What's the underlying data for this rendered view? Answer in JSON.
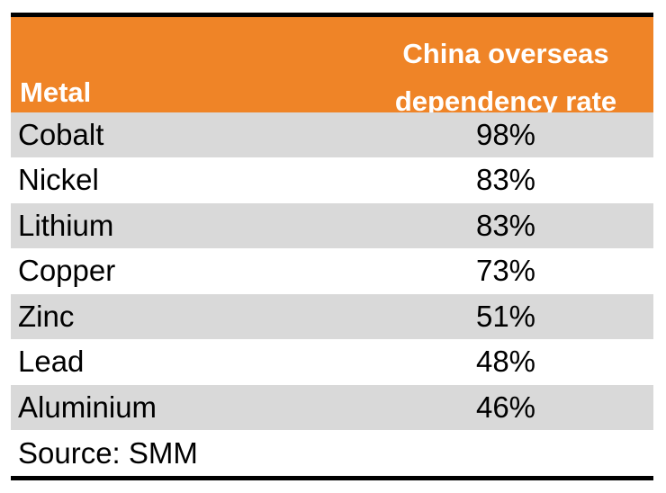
{
  "colors": {
    "header_bg": "#ef8427",
    "header_text": "#ffffff",
    "shaded_row": "#d9d9d9",
    "rule": "#000000"
  },
  "header": {
    "metal": "Metal",
    "rate_line1": "China overseas",
    "rate_line2": "dependency rate"
  },
  "rows": [
    {
      "metal": "Cobalt",
      "value": "98%"
    },
    {
      "metal": "Nickel",
      "value": "83%"
    },
    {
      "metal": "Lithium",
      "value": "83%"
    },
    {
      "metal": "Copper",
      "value": "73%"
    },
    {
      "metal": "Zinc",
      "value": "51%"
    },
    {
      "metal": "Lead",
      "value": "48%"
    },
    {
      "metal": "Aluminium",
      "value": "46%"
    }
  ],
  "source": "Source: SMM",
  "chart_data": {
    "type": "table",
    "columns": [
      "Metal",
      "China overseas dependency rate"
    ],
    "categories": [
      "Cobalt",
      "Nickel",
      "Lithium",
      "Copper",
      "Zinc",
      "Lead",
      "Aluminium"
    ],
    "values": [
      98,
      83,
      83,
      73,
      51,
      48,
      46
    ],
    "unit": "%"
  }
}
